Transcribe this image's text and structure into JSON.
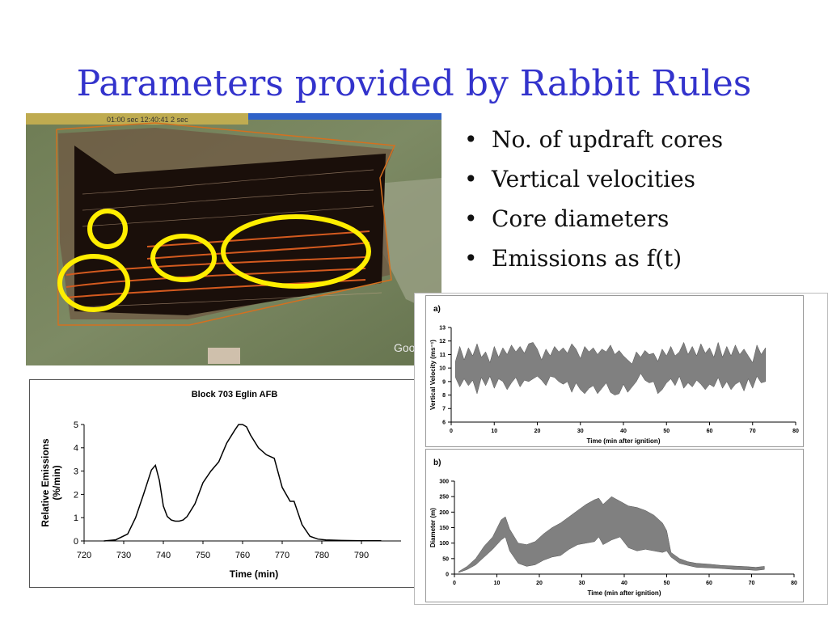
{
  "slide": {
    "title": "Parameters provided by Rabbit Rules",
    "bullet_char": "•",
    "bullets": [
      "No. of updraft cores",
      "Vertical velocities",
      "Core diameters",
      "Emissions as f(t)"
    ]
  },
  "map_image": {
    "overlay_text": "01:00 sec   12:40:41   2 sec",
    "watermark": "Goo",
    "highlight_color": "#ffee00"
  },
  "colors": {
    "title": "#3333cc",
    "band_fill": "#808080",
    "line": "#000000"
  },
  "chart_data": [
    {
      "type": "line",
      "title": "Block 703 Eglin AFB",
      "xlabel": "Time (min)",
      "ylabel": "Relative Emissions (%/min)",
      "ylabel_lines": [
        "Relative Emissions",
        "(%/min)"
      ],
      "xlim": [
        720,
        800
      ],
      "ylim": [
        0,
        5
      ],
      "xticks": [
        720,
        730,
        740,
        750,
        760,
        770,
        780,
        790
      ],
      "yticks": [
        0,
        1,
        2,
        3,
        4,
        5
      ],
      "grid": false,
      "x": [
        725,
        728,
        731,
        733,
        735,
        737,
        738,
        739,
        740,
        741,
        742,
        743,
        744,
        745,
        746,
        748,
        750,
        752,
        754,
        756,
        758,
        759,
        760,
        761,
        762,
        764,
        766,
        768,
        770,
        772,
        773,
        775,
        777,
        779,
        781,
        785,
        790,
        795
      ],
      "y": [
        0,
        0.05,
        0.3,
        1.0,
        2.0,
        3.05,
        3.25,
        2.6,
        1.5,
        1.05,
        0.9,
        0.85,
        0.85,
        0.9,
        1.05,
        1.6,
        2.5,
        3.0,
        3.4,
        4.2,
        4.75,
        5.0,
        5.0,
        4.9,
        4.55,
        4.0,
        3.7,
        3.55,
        2.3,
        1.7,
        1.7,
        0.7,
        0.2,
        0.08,
        0.04,
        0.02,
        0.01,
        0.01
      ]
    },
    {
      "type": "area",
      "panel_label": "a)",
      "xlabel": "Time (min after ignition)",
      "ylabel": "Vertical Velocity (ms⁻¹)",
      "xlim": [
        0,
        80
      ],
      "ylim": [
        6,
        13
      ],
      "xticks": [
        0,
        10,
        20,
        30,
        40,
        50,
        60,
        70,
        80
      ],
      "yticks": [
        6,
        7,
        8,
        9,
        10,
        11,
        12,
        13
      ],
      "grid": false,
      "x": [
        1,
        2,
        3,
        4,
        5,
        6,
        7,
        8,
        9,
        10,
        11,
        12,
        13,
        14,
        15,
        16,
        17,
        18,
        19,
        20,
        21,
        22,
        23,
        24,
        25,
        26,
        27,
        28,
        29,
        30,
        31,
        32,
        33,
        34,
        35,
        36,
        37,
        38,
        39,
        40,
        41,
        42,
        43,
        44,
        45,
        46,
        47,
        48,
        49,
        50,
        51,
        52,
        53,
        54,
        55,
        56,
        57,
        58,
        59,
        60,
        61,
        62,
        63,
        64,
        65,
        66,
        67,
        68,
        69,
        70,
        71,
        72,
        73
      ],
      "upper": [
        10.5,
        11.6,
        10.6,
        11.5,
        10.9,
        11.8,
        10.8,
        11.2,
        10.4,
        11.6,
        10.8,
        11.5,
        11.0,
        11.7,
        11.2,
        11.6,
        11.1,
        11.8,
        11.9,
        11.4,
        10.6,
        11.4,
        10.9,
        11.6,
        11.2,
        11.5,
        11.1,
        11.8,
        11.4,
        10.7,
        11.6,
        11.2,
        11.5,
        11.0,
        11.4,
        11.2,
        11.7,
        11.0,
        11.3,
        10.9,
        10.6,
        10.3,
        11.2,
        10.8,
        11.3,
        11.0,
        11.1,
        10.5,
        11.4,
        10.9,
        11.6,
        10.9,
        11.2,
        11.9,
        11.0,
        11.6,
        10.9,
        11.8,
        11.1,
        11.5,
        10.8,
        11.9,
        10.8,
        11.6,
        10.9,
        11.7,
        11.0,
        11.4,
        10.9,
        10.4,
        11.7,
        11.0,
        11.5
      ],
      "lower": [
        9.3,
        8.6,
        9.2,
        8.7,
        9.1,
        8.1,
        9.3,
        8.7,
        9.4,
        8.5,
        9.2,
        9.0,
        8.4,
        8.9,
        9.3,
        8.6,
        9.1,
        9.0,
        9.2,
        9.4,
        9.1,
        8.7,
        9.4,
        9.3,
        9.0,
        8.8,
        9.0,
        8.2,
        8.9,
        8.4,
        8.1,
        8.5,
        8.7,
        8.1,
        8.5,
        8.9,
        8.2,
        8.0,
        8.1,
        8.8,
        8.2,
        8.6,
        9.0,
        9.6,
        9.1,
        8.9,
        9.0,
        8.1,
        8.4,
        8.9,
        9.2,
        8.7,
        9.4,
        8.5,
        8.9,
        8.6,
        9.1,
        8.8,
        8.4,
        8.8,
        8.6,
        9.3,
        8.5,
        9.0,
        8.4,
        8.8,
        9.0,
        8.3,
        9.2,
        8.5,
        9.4,
        8.9,
        9.0
      ]
    },
    {
      "type": "area",
      "panel_label": "b)",
      "xlabel": "Time (min after ignition)",
      "ylabel": "Diameter (m)",
      "xlim": [
        0,
        80
      ],
      "ylim": [
        0,
        300
      ],
      "xticks": [
        0,
        10,
        20,
        30,
        40,
        50,
        60,
        70,
        80
      ],
      "yticks": [
        0,
        50,
        100,
        150,
        200,
        250,
        300
      ],
      "grid": false,
      "x": [
        1,
        3,
        5,
        7,
        9,
        11,
        12,
        13,
        15,
        17,
        19,
        21,
        23,
        25,
        27,
        29,
        31,
        33,
        34,
        35,
        37,
        39,
        41,
        43,
        45,
        47,
        49,
        50,
        51,
        53,
        55,
        57,
        60,
        63,
        66,
        69,
        71,
        73
      ],
      "upper": [
        8,
        25,
        50,
        90,
        120,
        175,
        185,
        145,
        100,
        95,
        105,
        130,
        150,
        165,
        185,
        205,
        225,
        240,
        245,
        225,
        250,
        235,
        220,
        215,
        205,
        190,
        165,
        140,
        70,
        50,
        40,
        35,
        32,
        28,
        26,
        24,
        22,
        25
      ],
      "lower": [
        5,
        15,
        30,
        55,
        80,
        110,
        120,
        75,
        35,
        25,
        30,
        45,
        55,
        60,
        80,
        95,
        100,
        105,
        120,
        95,
        110,
        120,
        85,
        75,
        80,
        75,
        70,
        75,
        55,
        35,
        28,
        22,
        20,
        18,
        15,
        14,
        12,
        15
      ]
    }
  ]
}
